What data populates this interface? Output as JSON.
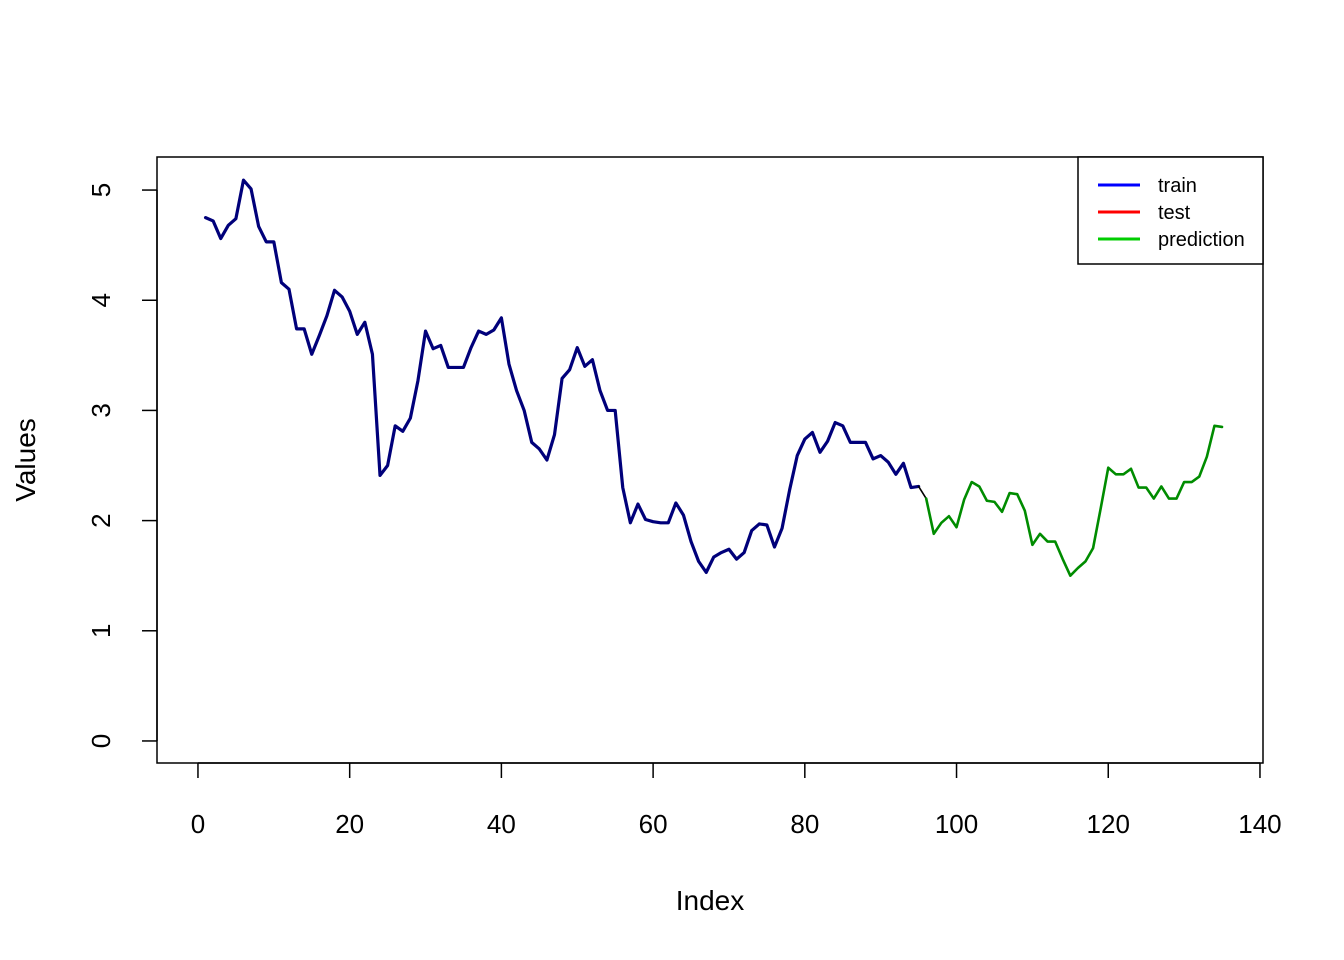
{
  "chart_data": {
    "type": "line",
    "title": "",
    "xlabel": "Index",
    "ylabel": "Values",
    "xlim": [
      -5.4,
      140.4
    ],
    "ylim": [
      -0.2,
      5.3
    ],
    "x_ticks": [
      0,
      20,
      40,
      60,
      80,
      100,
      120,
      140
    ],
    "y_ticks": [
      0,
      1,
      2,
      3,
      4,
      5
    ],
    "grid": false,
    "legend_position": "top-right",
    "legend": [
      {
        "name": "train",
        "color": "#0000FF"
      },
      {
        "name": "test",
        "color": "#FF0000"
      },
      {
        "name": "prediction",
        "color": "#00CD00"
      }
    ],
    "series": [
      {
        "name": "train",
        "color": "#00007A",
        "x_start": 1,
        "values": [
          4.75,
          4.72,
          4.56,
          4.68,
          4.74,
          5.09,
          5.01,
          4.67,
          4.53,
          4.53,
          4.16,
          4.1,
          3.74,
          3.74,
          3.51,
          3.68,
          3.86,
          4.09,
          4.03,
          3.9,
          3.69,
          3.8,
          3.51,
          2.41,
          2.5,
          2.86,
          2.81,
          2.93,
          3.27,
          3.72,
          3.56,
          3.59,
          3.39,
          3.39,
          3.39,
          3.57,
          3.72,
          3.69,
          3.73,
          3.84,
          3.42,
          3.18,
          3.0,
          2.71,
          2.65,
          2.55,
          2.78,
          3.29,
          3.37,
          3.57,
          3.4,
          3.46,
          3.18,
          3.0,
          3.0,
          2.3,
          1.98,
          2.15,
          2.01,
          1.99,
          1.98,
          1.98,
          2.16,
          2.05,
          1.81,
          1.63,
          1.53,
          1.67,
          1.71,
          1.74,
          1.65,
          1.71,
          1.91,
          1.97,
          1.96,
          1.76,
          1.93,
          2.28,
          2.59,
          2.74,
          2.8,
          2.62,
          2.72,
          2.89,
          2.86,
          2.71,
          2.71,
          2.71,
          2.56,
          2.59,
          2.53,
          2.42,
          2.52,
          2.3,
          2.31
        ]
      },
      {
        "name": "test",
        "color": "#000000",
        "x_start": 95,
        "values": [
          2.31,
          2.2,
          1.88,
          1.98,
          2.04,
          1.94,
          2.19,
          2.35,
          2.31,
          2.18,
          2.17,
          2.08,
          2.25,
          2.24,
          2.09,
          1.78,
          1.88,
          1.81,
          1.81,
          1.65,
          1.5,
          1.57,
          1.63,
          1.75,
          2.11,
          2.48,
          2.42,
          2.42,
          2.47,
          2.3,
          2.3,
          2.2,
          2.31,
          2.2,
          2.2,
          2.35,
          2.35,
          2.4,
          2.58,
          2.86,
          2.85
        ]
      },
      {
        "name": "prediction",
        "color": "#008C00",
        "x_start": 96,
        "values": [
          2.2,
          1.88,
          1.98,
          2.04,
          1.94,
          2.19,
          2.35,
          2.31,
          2.18,
          2.17,
          2.08,
          2.25,
          2.24,
          2.09,
          1.78,
          1.88,
          1.81,
          1.81,
          1.65,
          1.5,
          1.57,
          1.63,
          1.75,
          2.11,
          2.48,
          2.42,
          2.42,
          2.47,
          2.3,
          2.3,
          2.2,
          2.31,
          2.2,
          2.2,
          2.35,
          2.35,
          2.4,
          2.58,
          2.86,
          2.85
        ]
      }
    ]
  }
}
